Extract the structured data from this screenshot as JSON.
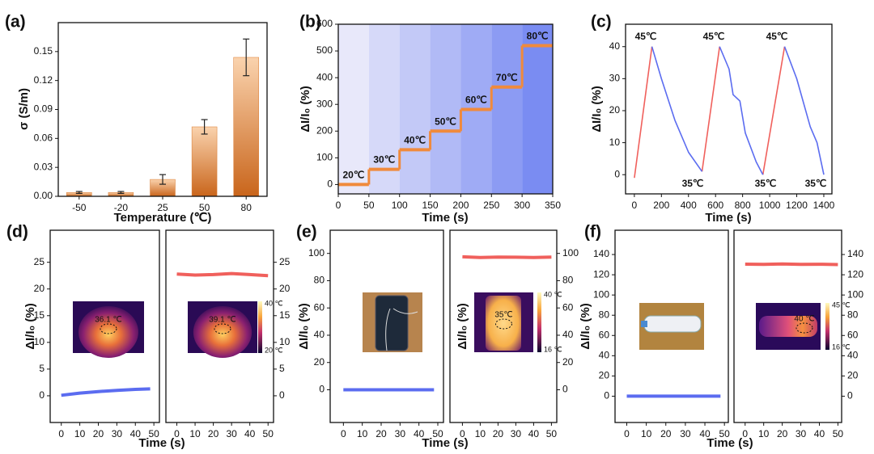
{
  "chart_data": [
    {
      "type": "bar",
      "panel": "(a)",
      "categories": [
        "-50",
        "-20",
        "25",
        "50",
        "80"
      ],
      "values": [
        0.004,
        0.004,
        0.0175,
        0.072,
        0.144
      ],
      "errors": [
        0.001,
        0.001,
        0.005,
        0.0075,
        0.019
      ],
      "ylim": [
        0,
        0.18
      ],
      "yticks": [
        {
          "value": 0,
          "label": "0.00"
        },
        {
          "value": 0.03,
          "label": "0.03"
        },
        {
          "value": 0.06,
          "label": "0.06"
        },
        {
          "value": 0.09,
          "label": "0.09"
        },
        {
          "value": 0.12,
          "label": "0.12"
        },
        {
          "value": 0.15,
          "label": "0.15"
        }
      ],
      "x_label": "Temperature (℃)",
      "y_label": "σ (S/m)",
      "color": "#d9782c"
    },
    {
      "type": "step",
      "panel": "(b)",
      "x": [
        0,
        50,
        100,
        150,
        200,
        250,
        300
      ],
      "values": [
        0,
        57,
        130,
        200,
        281,
        365,
        520
      ],
      "annotations": [
        "20℃",
        "30℃",
        "40℃",
        "50℃",
        "60℃",
        "70℃",
        "80℃"
      ],
      "xlim": [
        0,
        350
      ],
      "xticks": [
        0,
        50,
        100,
        150,
        200,
        250,
        300,
        350
      ],
      "ylim": [
        -35,
        600
      ],
      "yticks": [
        0,
        100,
        200,
        300,
        400,
        500,
        600
      ],
      "x_label": "Time (s)",
      "y_label": "ΔI/I₀ (%)",
      "color": "#f08a3c"
    },
    {
      "type": "line",
      "panel": "(c)",
      "series": [
        {
          "color": "#f0605c",
          "x": [
            0,
            130,
            300,
            500,
            630,
            800,
            950,
            1110
          ],
          "values": [
            -1,
            40,
            null,
            1,
            40,
            null,
            0,
            40
          ]
        },
        {
          "color": "#5b6cf0",
          "x": [
            130,
            200,
            300,
            400,
            500,
            600,
            630,
            700,
            730,
            780,
            820,
            900,
            950,
            1050,
            1110,
            1200,
            1300,
            1350,
            1400
          ],
          "values": [
            40,
            30,
            17,
            7,
            1,
            null,
            40,
            33,
            25,
            23,
            13,
            4,
            0,
            null,
            40,
            30,
            15,
            10,
            0
          ]
        }
      ],
      "annotations": [
        "45℃",
        "45℃",
        "45℃",
        "35℃",
        "35℃",
        "35℃"
      ],
      "xlim": [
        -65,
        1460
      ],
      "xticks": [
        0,
        200,
        400,
        600,
        800,
        1000,
        1200,
        1400
      ],
      "ylim": [
        -6,
        47
      ],
      "yticks": [
        0,
        10,
        20,
        30,
        40
      ],
      "x_label": "Time (s)",
      "y_label": "ΔI/I₀ (%)"
    },
    {
      "type": "line",
      "panel": "(d)",
      "xlim": [
        -6,
        53
      ],
      "xticks": [
        0,
        10,
        20,
        30,
        40,
        50
      ],
      "ylim": [
        -5,
        31
      ],
      "yticks": [
        0,
        5,
        10,
        15,
        20,
        25
      ],
      "x_label": "Time (s)",
      "y_label": "ΔI/I₀ (%)",
      "series": [
        {
          "color": "#5b6cf0",
          "x": [
            0,
            10,
            20,
            30,
            40,
            48
          ],
          "values": [
            0.1,
            0.5,
            0.8,
            1.0,
            1.2,
            1.3
          ]
        }
      ],
      "inset_label": "36.1 ℃"
    },
    {
      "type": "line",
      "y_axis_side": "right",
      "xlim": [
        -6,
        53
      ],
      "xticks": [
        0,
        10,
        20,
        30,
        40,
        50
      ],
      "ylim": [
        -5,
        31
      ],
      "yticks": [
        0,
        5,
        10,
        15,
        20,
        25
      ],
      "series": [
        {
          "color": "#f0605c",
          "x": [
            0,
            10,
            20,
            30,
            40,
            50
          ],
          "values": [
            22.8,
            22.6,
            22.7,
            22.9,
            22.7,
            22.5
          ]
        }
      ],
      "inset_label": "39.1 ℃",
      "colorbar_labels": [
        "40 ℃",
        "20 ℃"
      ]
    },
    {
      "type": "line",
      "panel": "(e)",
      "xlim": [
        -7,
        53
      ],
      "xticks": [
        0,
        10,
        20,
        30,
        40,
        50
      ],
      "ylim": [
        -24,
        117
      ],
      "yticks": [
        0,
        20,
        40,
        60,
        80,
        100
      ],
      "x_label": "Time (s)",
      "y_label": "ΔI/I₀ (%)",
      "series": [
        {
          "color": "#5b6cf0",
          "x": [
            0,
            10,
            20,
            30,
            40,
            48
          ],
          "values": [
            0,
            0,
            0,
            0,
            0,
            0
          ]
        }
      ]
    },
    {
      "type": "line",
      "y_axis_side": "right",
      "xlim": [
        -7,
        53
      ],
      "xticks": [
        0,
        10,
        20,
        30,
        40,
        50
      ],
      "ylim": [
        -24,
        117
      ],
      "yticks": [
        0,
        20,
        40,
        60,
        80,
        100
      ],
      "y_label": "ΔI/I₀ (%)",
      "series": [
        {
          "color": "#f0605c",
          "x": [
            0,
            10,
            20,
            30,
            40,
            50
          ],
          "values": [
            97.5,
            97.0,
            97.3,
            97.2,
            97.0,
            97.3
          ]
        }
      ],
      "inset_label": "35℃",
      "colorbar_labels": [
        "40 ℃",
        "16 ℃"
      ]
    },
    {
      "type": "line",
      "panel": "(f)",
      "xlim": [
        -6,
        52
      ],
      "xticks": [
        0,
        10,
        20,
        30,
        40,
        50
      ],
      "ylim": [
        -26,
        164
      ],
      "yticks": [
        0,
        20,
        40,
        60,
        80,
        100,
        120,
        140
      ],
      "x_label": "Time (s)",
      "y_label": "ΔI/I₀ (%)",
      "series": [
        {
          "color": "#5b6cf0",
          "x": [
            0,
            10,
            20,
            30,
            40,
            48
          ],
          "values": [
            0,
            0,
            0,
            0,
            0,
            0
          ]
        }
      ]
    },
    {
      "type": "line",
      "y_axis_side": "right",
      "xlim": [
        -6,
        52
      ],
      "xticks": [
        0,
        10,
        20,
        30,
        40,
        50
      ],
      "ylim": [
        -26,
        164
      ],
      "yticks": [
        0,
        20,
        40,
        60,
        80,
        100,
        120,
        140
      ],
      "series": [
        {
          "color": "#f0605c",
          "x": [
            0,
            10,
            20,
            30,
            40,
            50
          ],
          "values": [
            130.5,
            130.2,
            130.6,
            130.3,
            130.4,
            130.1
          ]
        }
      ],
      "inset_label": "40 ℃",
      "colorbar_labels": [
        "45 ℃",
        "16 ℃"
      ]
    }
  ]
}
